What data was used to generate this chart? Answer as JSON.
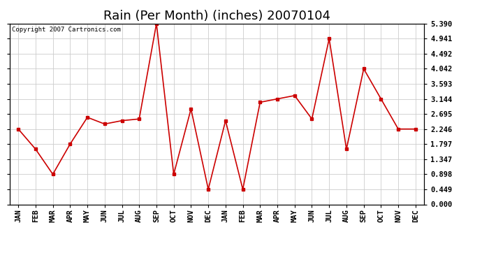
{
  "title": "Rain (Per Month) (inches) 20070104",
  "copyright_text": "Copyright 2007 Cartronics.com",
  "months": [
    "JAN",
    "FEB",
    "MAR",
    "APR",
    "MAY",
    "JUN",
    "JUL",
    "AUG",
    "SEP",
    "OCT",
    "NOV",
    "DEC",
    "JAN",
    "FEB",
    "MAR",
    "APR",
    "MAY",
    "JUN",
    "JUL",
    "AUG",
    "SEP",
    "OCT",
    "NOV",
    "DEC"
  ],
  "values": [
    2.246,
    1.647,
    0.898,
    1.797,
    2.595,
    2.396,
    2.496,
    2.546,
    5.39,
    0.898,
    2.845,
    0.449,
    2.496,
    0.449,
    3.044,
    3.144,
    3.244,
    2.546,
    4.941,
    1.647,
    4.042,
    3.144,
    2.246,
    2.246
  ],
  "yticks": [
    0.0,
    0.449,
    0.898,
    1.347,
    1.797,
    2.246,
    2.695,
    3.144,
    3.593,
    4.042,
    4.492,
    4.941,
    5.39
  ],
  "ymin": 0.0,
  "ymax": 5.39,
  "line_color": "#cc0000",
  "marker": "s",
  "marker_size": 3,
  "bg_color": "#ffffff",
  "grid_color": "#cccccc",
  "title_fontsize": 13,
  "label_fontsize": 7.5,
  "copyright_fontsize": 6.5,
  "figsize": [
    6.9,
    3.75
  ],
  "dpi": 100
}
